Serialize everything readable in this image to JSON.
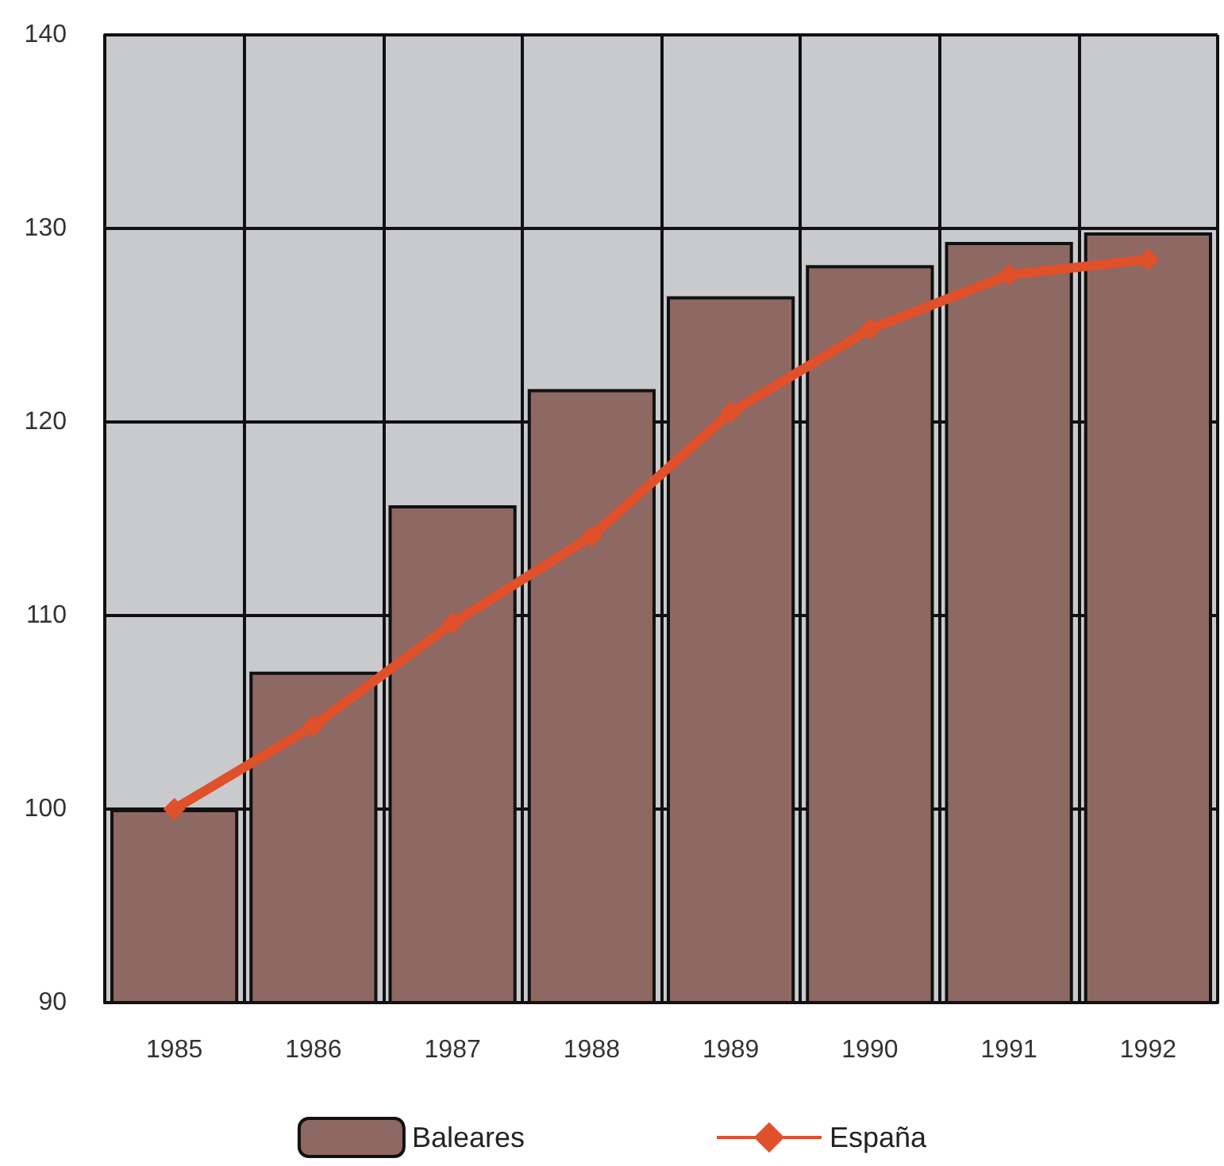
{
  "chart_data": {
    "type": "bar",
    "categories": [
      "1985",
      "1986",
      "1987",
      "1988",
      "1989",
      "1990",
      "1991",
      "1992"
    ],
    "series": [
      {
        "name": "Baleares",
        "color": "#8e6862",
        "values": [
          100,
          107.1,
          115.7,
          121.7,
          126.5,
          128.1,
          129.3,
          129.8
        ]
      },
      {
        "name": "España",
        "type": "line",
        "color": "#e0502a",
        "marker": "diamond",
        "values": [
          100,
          104.3,
          109.6,
          114.1,
          120.5,
          124.8,
          127.6,
          128.4
        ]
      }
    ],
    "ylim": [
      90,
      140
    ],
    "yticks": [
      90,
      100,
      110,
      120,
      130,
      140
    ],
    "grid": true,
    "legend": "bottom"
  }
}
